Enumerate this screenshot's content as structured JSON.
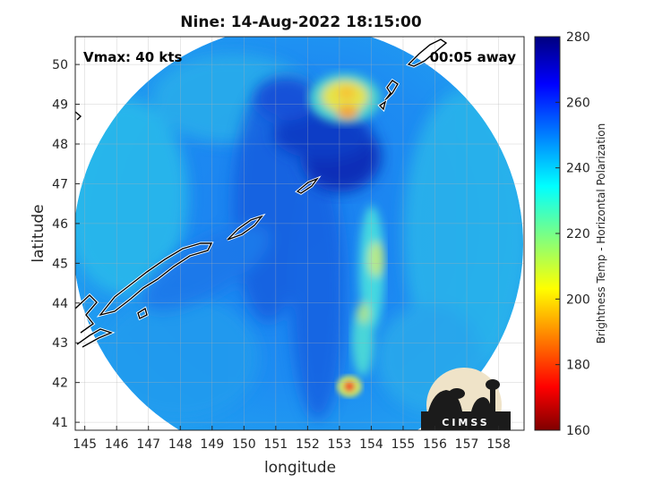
{
  "title": "Nine: 14-Aug-2022 18:15:00",
  "annotations": {
    "left": "Vmax: 40 kts",
    "right": "00:05 away"
  },
  "axes": {
    "xlabel": "longitude",
    "ylabel": "latitude",
    "xlim": [
      144.7,
      158.8
    ],
    "ylim": [
      40.8,
      50.7
    ],
    "xticks": [
      "145",
      "146",
      "147",
      "148",
      "149",
      "150",
      "151",
      "152",
      "153",
      "154",
      "155",
      "156",
      "157",
      "158"
    ],
    "yticks": [
      "41",
      "42",
      "43",
      "44",
      "45",
      "46",
      "47",
      "48",
      "49",
      "50"
    ],
    "grid": true
  },
  "colorbar": {
    "label": "Brightness Temp - Horizontal Polarization",
    "range": [
      160,
      280
    ],
    "ticks": [
      "160",
      "180",
      "200",
      "220",
      "240",
      "260",
      "280"
    ],
    "colormap": "jet-reversed",
    "colors": [
      "#7f0000",
      "#ff0000",
      "#ffff00",
      "#00ffff",
      "#0000ff",
      "#00007f"
    ]
  },
  "logo": {
    "text": "CIMSS"
  },
  "map_data": {
    "swath_center": [
      151.8,
      45.7
    ],
    "features": [
      {
        "name": "cold-core",
        "lon": 152.6,
        "lat": 47.7,
        "temp": 258
      },
      {
        "name": "warm-cluster-north",
        "lon": 153.1,
        "lat": 49.1,
        "temp": 205
      },
      {
        "name": "warm-spot-south",
        "lon": 153.3,
        "lat": 41.9,
        "temp": 190
      },
      {
        "name": "convective-band",
        "lon": 154.0,
        "lat": 44.8,
        "temp": 215
      }
    ]
  }
}
